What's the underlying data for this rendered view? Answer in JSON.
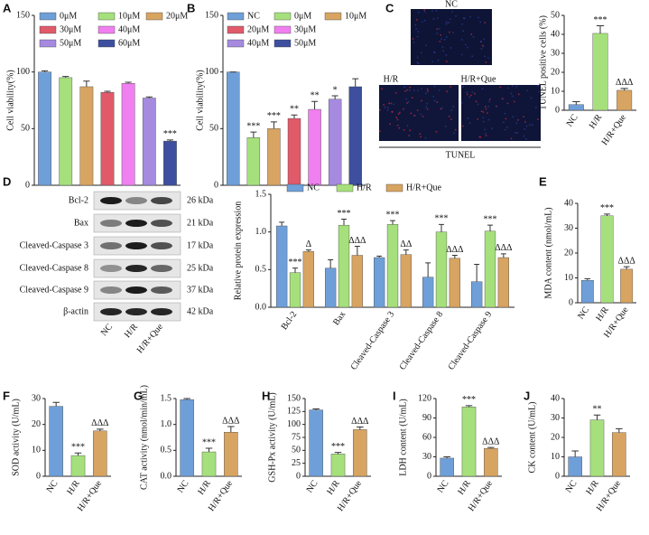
{
  "tunel_images": {
    "label": "C",
    "panels": [
      "NC",
      "H/R",
      "H/R+Que"
    ],
    "caption": "TUNEL"
  },
  "blot": {
    "label": "D",
    "proteins": [
      "Bcl-2",
      "Bax",
      "Cleaved-Caspase 3",
      "Cleaved-Caspase 8",
      "Cleaved-Caspase 9",
      "β-actin"
    ],
    "sizes": [
      "26 kDa",
      "21 kDa",
      "17 kDa",
      "25 kDa",
      "37 kDa",
      "42 kDa"
    ],
    "lanes": [
      "NC",
      "H/R",
      "H/R+Que"
    ]
  },
  "chart_data": [
    {
      "type": "bar",
      "label": "A",
      "ylabel": "Cell viability(%)",
      "legend": true,
      "categories": [
        "0μM",
        "10μM",
        "20μM",
        "30μM",
        "40μM",
        "50μM",
        "60μM"
      ],
      "values": [
        100,
        95,
        87,
        82,
        90,
        77,
        39
      ],
      "errors": [
        1,
        1,
        5,
        1,
        1,
        1,
        1
      ],
      "annotations": [
        null,
        null,
        null,
        null,
        null,
        null,
        "***"
      ],
      "colors": [
        "#6f9fd8",
        "#a6e07c",
        "#d8a462",
        "#e05a6a",
        "#f07ff0",
        "#a68ae0",
        "#3d4f9e"
      ],
      "ylim": [
        0,
        150
      ],
      "yticks": [
        0,
        50,
        100,
        150
      ]
    },
    {
      "type": "bar",
      "label": "B",
      "ylabel": "Cell viability(%)",
      "legend": true,
      "categories": [
        "NC",
        "0μM",
        "10μM",
        "20μM",
        "30μM",
        "40μM",
        "50μM"
      ],
      "values": [
        100,
        42,
        50,
        59,
        67,
        76,
        87
      ],
      "errors": [
        0,
        5,
        6,
        3,
        7,
        3,
        7
      ],
      "annotations": [
        null,
        "***",
        "***",
        "**",
        "**",
        "*",
        null
      ],
      "colors": [
        "#6f9fd8",
        "#a6e07c",
        "#d8a462",
        "#e05a6a",
        "#f07ff0",
        "#a68ae0",
        "#3d4f9e"
      ],
      "ylim": [
        0,
        150
      ],
      "yticks": [
        0,
        50,
        100,
        150
      ]
    },
    {
      "type": "bar",
      "ylabel": "TUNEL positive cells (%)",
      "categories": [
        "NC",
        "H/R",
        "H/R+Que"
      ],
      "values": [
        3,
        40.5,
        10.5
      ],
      "errors": [
        1.5,
        4,
        1
      ],
      "annotations": [
        null,
        "***",
        "ΔΔΔ"
      ],
      "colors": [
        "#6f9fd8",
        "#a6e07c",
        "#d8a462"
      ],
      "ylim": [
        0,
        50
      ],
      "yticks": [
        0,
        10,
        20,
        30,
        40,
        50
      ]
    },
    {
      "type": "grouped-bar",
      "ylabel": "Relative protein expression",
      "categories": [
        "Bcl-2",
        "Bax",
        "Cleaved-Caspase 3",
        "Cleaved-Caspase 8",
        "Cleaved-Caspase 9"
      ],
      "series": [
        {
          "name": "NC",
          "color": "#6f9fd8",
          "values": [
            1.08,
            0.52,
            0.66,
            0.4,
            0.34
          ],
          "errors": [
            0.05,
            0.11,
            0.02,
            0.19,
            0.23
          ],
          "annotations": [
            null,
            null,
            null,
            null,
            null
          ]
        },
        {
          "name": "H/R",
          "color": "#a6e07c",
          "values": [
            0.46,
            1.09,
            1.1,
            1.0,
            1.01
          ],
          "errors": [
            0.06,
            0.08,
            0.05,
            0.1,
            0.08
          ],
          "annotations": [
            "***",
            "***",
            "***",
            "***",
            "***"
          ]
        },
        {
          "name": "H/R+Que",
          "color": "#d8a462",
          "values": [
            0.74,
            0.69,
            0.7,
            0.65,
            0.66
          ],
          "errors": [
            0.02,
            0.12,
            0.06,
            0.04,
            0.05
          ],
          "annotations": [
            "Δ",
            "ΔΔΔ",
            "ΔΔ",
            "ΔΔΔ",
            "ΔΔΔ"
          ]
        }
      ],
      "ylim": [
        0,
        1.5
      ],
      "yticks": [
        {
          "value": 0,
          "label": "0.0"
        },
        0.5,
        {
          "value": 1,
          "label": "1.0"
        },
        1.5
      ]
    },
    {
      "type": "bar",
      "label": "E",
      "ylabel": "MDA content (nmol/mL)",
      "categories": [
        "NC",
        "H/R",
        "H/R+Que"
      ],
      "values": [
        9,
        35,
        13.5
      ],
      "errors": [
        0.7,
        0.7,
        1
      ],
      "annotations": [
        null,
        "***",
        "ΔΔΔ"
      ],
      "colors": [
        "#6f9fd8",
        "#a6e07c",
        "#d8a462"
      ],
      "ylim": [
        0,
        40
      ],
      "yticks": [
        0,
        10,
        20,
        30,
        40
      ]
    },
    {
      "type": "bar",
      "label": "F",
      "ylabel": "SOD activity (U/mL)",
      "categories": [
        "NC",
        "H/R",
        "H/R+Que"
      ],
      "values": [
        27,
        8,
        17.5
      ],
      "errors": [
        1.5,
        1,
        0.7
      ],
      "annotations": [
        null,
        "***",
        "ΔΔΔ"
      ],
      "colors": [
        "#6f9fd8",
        "#a6e07c",
        "#d8a462"
      ],
      "ylim": [
        0,
        30
      ],
      "yticks": [
        0,
        10,
        20,
        30
      ]
    },
    {
      "type": "bar",
      "label": "G",
      "ylabel": "CAT activity (nmol/min/mL)",
      "categories": [
        "NC",
        "H/R",
        "H/R+Que"
      ],
      "values": [
        1.48,
        0.47,
        0.85
      ],
      "errors": [
        0.02,
        0.07,
        0.11
      ],
      "annotations": [
        null,
        "***",
        "ΔΔΔ"
      ],
      "colors": [
        "#6f9fd8",
        "#a6e07c",
        "#d8a462"
      ],
      "ylim": [
        0,
        1.5
      ],
      "yticks": [
        {
          "value": 0,
          "label": "0.0"
        },
        0.5,
        {
          "value": 1,
          "label": "1.0"
        },
        1.5
      ]
    },
    {
      "type": "bar",
      "label": "H",
      "ylabel": "GSH-Px activity (U/mL)",
      "categories": [
        "NC",
        "H/R",
        "H/R+Que"
      ],
      "values": [
        128,
        43,
        90
      ],
      "errors": [
        2,
        3,
        5
      ],
      "annotations": [
        null,
        "***",
        "ΔΔΔ"
      ],
      "colors": [
        "#6f9fd8",
        "#a6e07c",
        "#d8a462"
      ],
      "ylim": [
        0,
        150
      ],
      "yticks": [
        0,
        25,
        50,
        75,
        100,
        125,
        150
      ]
    },
    {
      "type": "bar",
      "label": "I",
      "ylabel": "LDH content (U/mL)",
      "categories": [
        "NC",
        "H/R",
        "H/R+Que"
      ],
      "values": [
        28,
        107,
        43
      ],
      "errors": [
        2,
        2,
        1.5
      ],
      "annotations": [
        null,
        "***",
        "ΔΔΔ"
      ],
      "colors": [
        "#6f9fd8",
        "#a6e07c",
        "#d8a462"
      ],
      "ylim": [
        0,
        120
      ],
      "yticks": [
        0,
        30,
        60,
        90,
        120
      ]
    },
    {
      "type": "bar",
      "label": "J",
      "ylabel": "CK content (U/mL)",
      "categories": [
        "NC",
        "H/R",
        "H/R+Que"
      ],
      "values": [
        10,
        29,
        22.5
      ],
      "errors": [
        3,
        2.5,
        2
      ],
      "annotations": [
        null,
        "**",
        null
      ],
      "colors": [
        "#6f9fd8",
        "#a6e07c",
        "#d8a462"
      ],
      "ylim": [
        0,
        40
      ],
      "yticks": [
        0,
        10,
        20,
        30,
        40
      ]
    }
  ]
}
